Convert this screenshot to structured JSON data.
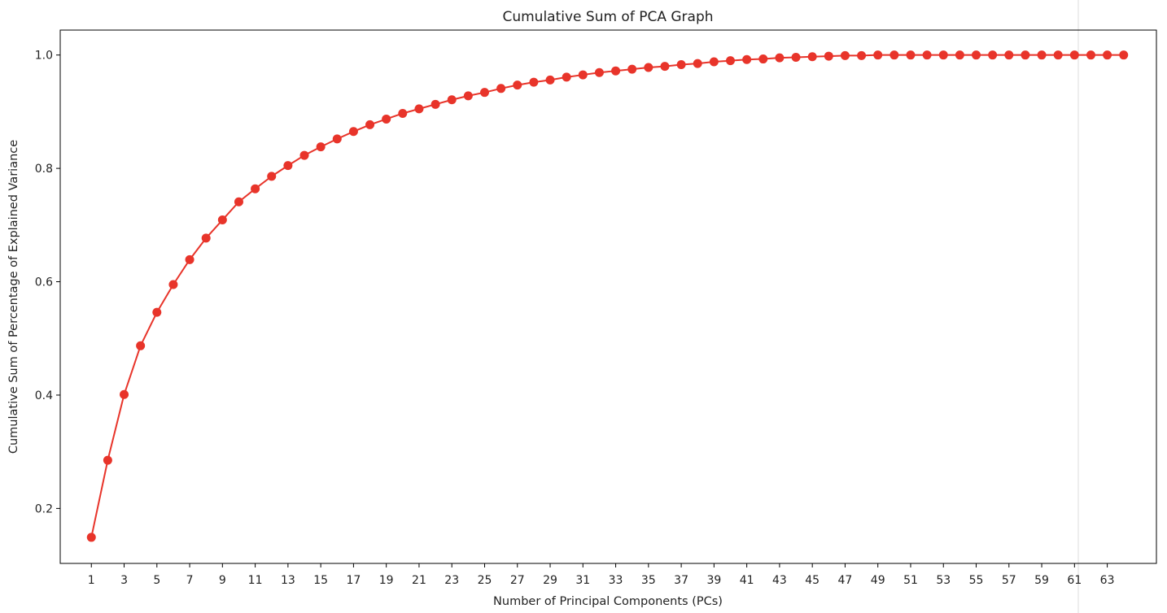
{
  "chart_data": {
    "type": "line",
    "title": "Cumulative Sum of PCA Graph",
    "xlabel": "Number of Principal Components (PCs)",
    "ylabel": "Cumulative Sum of Percentage of Explained Variance",
    "x": [
      1,
      2,
      3,
      4,
      5,
      6,
      7,
      8,
      9,
      10,
      11,
      12,
      13,
      14,
      15,
      16,
      17,
      18,
      19,
      20,
      21,
      22,
      23,
      24,
      25,
      26,
      27,
      28,
      29,
      30,
      31,
      32,
      33,
      34,
      35,
      36,
      37,
      38,
      39,
      40,
      41,
      42,
      43,
      44,
      45,
      46,
      47,
      48,
      49,
      50,
      51,
      52,
      53,
      54,
      55,
      56,
      57,
      58,
      59,
      60,
      61,
      62,
      63,
      64
    ],
    "xticks": [
      1,
      3,
      5,
      7,
      9,
      11,
      13,
      15,
      17,
      19,
      21,
      23,
      25,
      27,
      29,
      31,
      33,
      35,
      37,
      39,
      41,
      43,
      45,
      47,
      49,
      51,
      53,
      55,
      57,
      59,
      61,
      63
    ],
    "xlim": [
      -0.9,
      66.0
    ],
    "yticks": [
      0.2,
      0.4,
      0.6,
      0.8,
      1.0
    ],
    "ytick_labels": [
      "0.2",
      "0.4",
      "0.6",
      "0.8",
      "1.0"
    ],
    "ylim": [
      0.103,
      1.044
    ],
    "series": [
      {
        "color": "#e8342a",
        "marker": "circle",
        "values": [
          0.149,
          0.285,
          0.401,
          0.487,
          0.546,
          0.595,
          0.639,
          0.677,
          0.709,
          0.741,
          0.764,
          0.786,
          0.805,
          0.823,
          0.838,
          0.852,
          0.865,
          0.877,
          0.887,
          0.897,
          0.905,
          0.913,
          0.921,
          0.928,
          0.934,
          0.941,
          0.947,
          0.952,
          0.956,
          0.961,
          0.965,
          0.969,
          0.972,
          0.975,
          0.978,
          0.98,
          0.983,
          0.985,
          0.988,
          0.99,
          0.992,
          0.993,
          0.995,
          0.996,
          0.997,
          0.998,
          0.999,
          0.999,
          1.0,
          1.0,
          1.0,
          1.0,
          1.0,
          1.0,
          1.0,
          1.0,
          1.0,
          1.0,
          1.0,
          1.0,
          1.0,
          1.0,
          1.0,
          1.0
        ]
      }
    ],
    "grid": false,
    "legend": "none"
  }
}
